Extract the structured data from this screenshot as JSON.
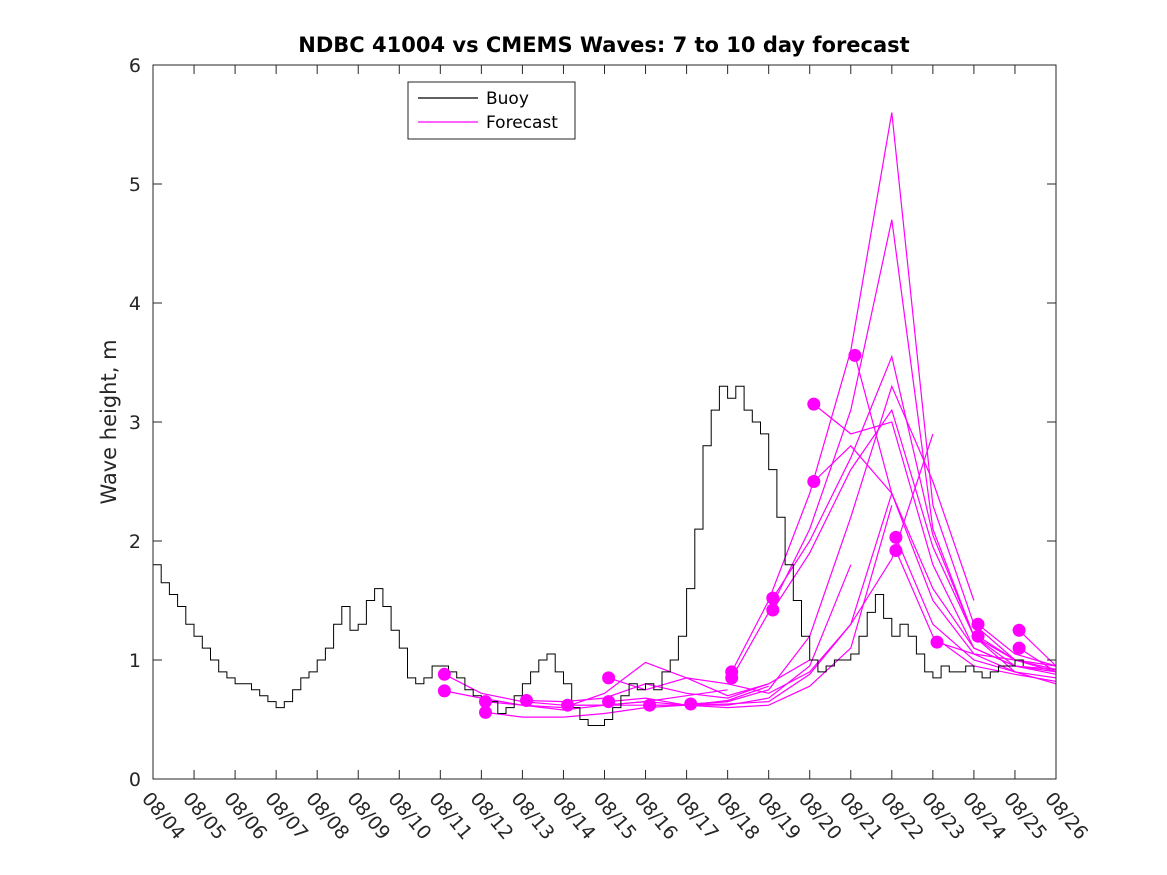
{
  "chart_data": {
    "type": "line",
    "title": "NDBC 41004 vs CMEMS Waves: 7 to 10 day forecast",
    "xlabel": "",
    "ylabel": "Wave height, m",
    "xlim": [
      0,
      22
    ],
    "ylim": [
      0,
      6
    ],
    "yticks": [
      0,
      1,
      2,
      3,
      4,
      5,
      6
    ],
    "xticks": [
      "08/04",
      "08/05",
      "08/06",
      "08/07",
      "08/08",
      "08/09",
      "08/10",
      "08/11",
      "08/12",
      "08/13",
      "08/14",
      "08/15",
      "08/16",
      "08/17",
      "08/18",
      "08/19",
      "08/20",
      "08/21",
      "08/22",
      "08/23",
      "08/24",
      "08/25",
      "08/26"
    ],
    "legend": {
      "position": "top-left",
      "entries": [
        {
          "name": "Buoy",
          "color": "#000000"
        },
        {
          "name": "Forecast",
          "color": "#ff00ff"
        }
      ]
    },
    "buoy": {
      "name": "Buoy",
      "color": "#000000",
      "x": [
        0,
        0.2,
        0.4,
        0.6,
        0.8,
        1,
        1.2,
        1.4,
        1.6,
        1.8,
        2,
        2.2,
        2.4,
        2.6,
        2.8,
        3,
        3.2,
        3.4,
        3.6,
        3.8,
        4,
        4.2,
        4.4,
        4.6,
        4.8,
        5,
        5.2,
        5.4,
        5.6,
        5.8,
        6,
        6.2,
        6.4,
        6.6,
        6.8,
        7,
        7.2,
        7.4,
        7.6,
        7.8,
        8,
        8.2,
        8.4,
        8.6,
        8.8,
        9,
        9.2,
        9.4,
        9.6,
        9.8,
        10,
        10.2,
        10.4,
        10.6,
        10.8,
        11,
        11.2,
        11.4,
        11.6,
        11.8,
        12,
        12.2,
        12.4,
        12.6,
        12.8,
        13,
        13.2,
        13.4,
        13.6,
        13.8,
        14,
        14.2,
        14.4,
        14.6,
        14.8,
        15,
        15.2,
        15.4,
        15.6,
        15.8,
        16,
        16.2,
        16.4,
        16.6,
        16.8,
        17,
        17.2,
        17.4,
        17.6,
        17.8,
        18,
        18.2,
        18.4,
        18.6,
        18.8,
        19,
        19.2,
        19.4,
        19.6,
        19.8,
        20,
        20.2,
        20.4,
        20.6,
        20.8,
        21,
        21.2
      ],
      "values": [
        1.8,
        1.65,
        1.55,
        1.45,
        1.3,
        1.2,
        1.1,
        1.0,
        0.9,
        0.85,
        0.8,
        0.8,
        0.75,
        0.7,
        0.65,
        0.6,
        0.65,
        0.75,
        0.85,
        0.9,
        1.0,
        1.1,
        1.3,
        1.45,
        1.25,
        1.3,
        1.5,
        1.6,
        1.45,
        1.25,
        1.1,
        0.85,
        0.8,
        0.85,
        0.95,
        0.95,
        0.9,
        0.85,
        0.75,
        0.7,
        0.65,
        0.65,
        0.55,
        0.6,
        0.7,
        0.8,
        0.9,
        1.0,
        1.05,
        0.9,
        0.8,
        0.6,
        0.5,
        0.45,
        0.45,
        0.5,
        0.6,
        0.7,
        0.8,
        0.75,
        0.8,
        0.75,
        0.9,
        1.0,
        1.2,
        1.6,
        2.1,
        2.8,
        3.1,
        3.3,
        3.2,
        3.3,
        3.1,
        3.0,
        2.9,
        2.6,
        2.2,
        1.8,
        1.5,
        1.2,
        1.0,
        0.9,
        0.95,
        1.0,
        1.0,
        1.05,
        1.2,
        1.4,
        1.55,
        1.35,
        1.2,
        1.3,
        1.2,
        1.05,
        0.9,
        0.85,
        0.95,
        0.9,
        0.9,
        0.95,
        0.9,
        0.85,
        0.9,
        0.95,
        0.95,
        1.0,
        0.95
      ]
    },
    "forecasts": [
      {
        "name": "Forecast",
        "x": [
          7.1,
          8.0,
          9.0,
          10.0,
          11.0,
          12.0,
          13.0,
          14.0
        ],
        "values": [
          0.88,
          0.72,
          0.65,
          0.62,
          0.62,
          0.62,
          0.62,
          0.65
        ]
      },
      {
        "name": "Forecast",
        "x": [
          7.1,
          8.0,
          9.0,
          10.0,
          11.0,
          12.0,
          13.0,
          14.0
        ],
        "values": [
          0.74,
          0.68,
          0.62,
          0.58,
          0.62,
          0.65,
          0.7,
          0.75
        ]
      },
      {
        "name": "Forecast",
        "x": [
          8.1,
          9.0,
          10.0,
          11.0,
          12.0,
          13.0,
          14.0,
          15.0
        ],
        "values": [
          0.65,
          0.62,
          0.6,
          0.72,
          0.98,
          0.85,
          0.7,
          0.8
        ]
      },
      {
        "name": "Forecast",
        "x": [
          8.1,
          9.0,
          10.0,
          11.0,
          12.0,
          13.0,
          14.0,
          15.0
        ],
        "values": [
          0.56,
          0.52,
          0.52,
          0.55,
          0.6,
          0.62,
          0.66,
          0.78
        ]
      },
      {
        "name": "Forecast",
        "x": [
          9.1,
          10.0,
          11.0,
          12.0,
          13.0,
          14.0,
          15.0,
          16.0
        ],
        "values": [
          0.66,
          0.65,
          0.68,
          0.8,
          0.72,
          0.68,
          0.8,
          1.0
        ]
      },
      {
        "name": "Forecast",
        "x": [
          10.1,
          11.0,
          12.0,
          13.0,
          14.0,
          15.0,
          16.0,
          17.0
        ],
        "values": [
          0.62,
          0.62,
          0.65,
          0.62,
          0.62,
          0.68,
          0.95,
          1.8
        ]
      },
      {
        "name": "Forecast",
        "x": [
          11.1,
          12.0,
          13.0,
          14.0,
          15.0,
          16.0,
          17.0,
          18.0
        ],
        "values": [
          0.85,
          0.75,
          0.85,
          0.8,
          0.72,
          0.9,
          1.3,
          2.4
        ]
      },
      {
        "name": "Forecast",
        "x": [
          11.1,
          12.0,
          13.0,
          14.0,
          15.0,
          16.0,
          17.0,
          18.0
        ],
        "values": [
          0.65,
          0.68,
          0.62,
          0.6,
          0.62,
          0.78,
          1.1,
          2.3
        ]
      },
      {
        "name": "Forecast",
        "x": [
          12.1,
          13.0,
          14.0,
          15.0,
          16.0,
          17.0,
          18.0,
          19.0
        ],
        "values": [
          0.62,
          0.62,
          0.63,
          0.65,
          0.88,
          1.3,
          1.85,
          2.9
        ]
      },
      {
        "name": "Forecast",
        "x": [
          13.1,
          14.0,
          15.0,
          16.0,
          17.0,
          18.0,
          19.0,
          20.0
        ],
        "values": [
          0.63,
          0.65,
          0.75,
          1.2,
          2.2,
          3.3,
          2.5,
          1.5
        ]
      },
      {
        "name": "Forecast",
        "x": [
          14.1,
          15.0,
          16.0,
          17.0,
          18.0,
          19.0,
          20.0,
          21.0
        ],
        "values": [
          0.9,
          1.5,
          2.4,
          3.6,
          5.6,
          2.3,
          1.3,
          1.0
        ]
      },
      {
        "name": "Forecast",
        "x": [
          14.1,
          15.0,
          16.0,
          17.0,
          18.0,
          19.0,
          20.0,
          21.0
        ],
        "values": [
          0.85,
          1.4,
          2.1,
          3.1,
          4.7,
          2.1,
          1.2,
          0.9
        ]
      },
      {
        "name": "Forecast",
        "x": [
          15.1,
          16.0,
          17.0,
          18.0,
          19.0,
          20.0,
          21.0,
          22.0
        ],
        "values": [
          1.52,
          2.0,
          2.7,
          3.55,
          2.05,
          1.2,
          1.0,
          0.92
        ]
      },
      {
        "name": "Forecast",
        "x": [
          15.1,
          16.0,
          17.0,
          18.0,
          19.0,
          20.0,
          21.0,
          22.0
        ],
        "values": [
          1.42,
          1.9,
          2.6,
          3.1,
          1.95,
          1.2,
          0.95,
          0.88
        ]
      },
      {
        "name": "Forecast",
        "x": [
          16.1,
          17.0,
          18.0,
          19.0,
          20.0,
          21.0,
          22.0
        ],
        "values": [
          3.15,
          2.9,
          3.0,
          1.8,
          1.1,
          0.95,
          0.92
        ]
      },
      {
        "name": "Forecast",
        "x": [
          16.1,
          17.0,
          18.0,
          19.0,
          20.0,
          21.0,
          22.0
        ],
        "values": [
          2.5,
          2.8,
          2.4,
          1.5,
          1.05,
          0.9,
          0.8
        ]
      },
      {
        "name": "Forecast",
        "x": [
          17.1,
          18.0,
          19.0,
          20.0,
          21.0,
          22.0
        ],
        "values": [
          3.56,
          2.4,
          1.6,
          1.1,
          0.95,
          0.9
        ]
      },
      {
        "name": "Forecast",
        "x": [
          18.1,
          19.0,
          20.0,
          21.0,
          22.0
        ],
        "values": [
          2.03,
          1.3,
          1.0,
          0.9,
          0.85
        ]
      },
      {
        "name": "Forecast",
        "x": [
          18.1,
          19.0,
          20.0,
          21.0,
          22.0
        ],
        "values": [
          1.92,
          1.2,
          0.95,
          0.88,
          0.82
        ]
      },
      {
        "name": "Forecast",
        "x": [
          19.1,
          20.0,
          21.0,
          22.0
        ],
        "values": [
          1.15,
          1.05,
          1.0,
          0.95
        ]
      },
      {
        "name": "Forecast",
        "x": [
          20.1,
          21.0,
          22.0
        ],
        "values": [
          1.3,
          1.05,
          0.95
        ]
      },
      {
        "name": "Forecast",
        "x": [
          20.1,
          21.0,
          22.0
        ],
        "values": [
          1.2,
          1.0,
          0.9
        ]
      },
      {
        "name": "Forecast",
        "x": [
          21.1,
          22.0
        ],
        "values": [
          1.25,
          0.95
        ]
      },
      {
        "name": "Forecast",
        "x": [
          21.1,
          22.0
        ],
        "values": [
          1.1,
          0.9
        ]
      }
    ],
    "forecast_color": "#ff00ff"
  }
}
